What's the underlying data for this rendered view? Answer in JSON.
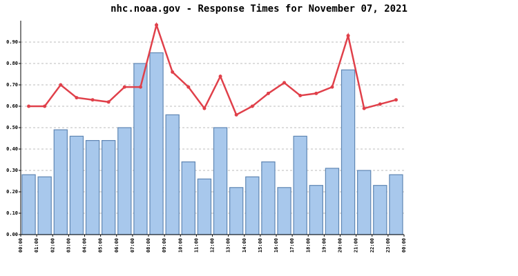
{
  "chart_data": {
    "type": "bar_line",
    "title": "nhc.noaa.gov - Response Times for November 07, 2021",
    "x_labels": [
      "00:00",
      "01:00",
      "02:00",
      "03:00",
      "04:00",
      "05:00",
      "06:00",
      "07:00",
      "08:00",
      "09:00",
      "10:00",
      "11:00",
      "12:00",
      "13:00",
      "14:00",
      "15:00",
      "16:00",
      "17:00",
      "18:00",
      "19:00",
      "20:00",
      "21:00",
      "22:00",
      "23:00",
      "00:00"
    ],
    "series": [
      {
        "kind": "bar",
        "color": "#a8c8ec",
        "values": [
          0.28,
          0.27,
          0.49,
          0.46,
          0.44,
          0.44,
          0.5,
          0.8,
          0.85,
          0.56,
          0.34,
          0.26,
          0.5,
          0.22,
          0.27,
          0.34,
          0.22,
          0.46,
          0.23,
          0.31,
          0.77,
          0.3,
          0.23,
          0.28
        ]
      },
      {
        "kind": "line",
        "color": "#e0404a",
        "values": [
          0.6,
          0.6,
          0.7,
          0.64,
          0.63,
          0.62,
          0.69,
          0.69,
          0.98,
          0.76,
          0.69,
          0.59,
          0.74,
          0.56,
          0.6,
          0.66,
          0.71,
          0.65,
          0.66,
          0.69,
          0.93,
          0.59,
          0.61,
          0.63
        ]
      }
    ],
    "ylim": [
      0,
      1.0
    ],
    "yticks": [
      {
        "value": 0,
        "label": "0.00"
      },
      {
        "value": 0.1,
        "label": "0.10"
      },
      {
        "value": 0.2,
        "label": "0.20"
      },
      {
        "value": 0.3,
        "label": "0.30"
      },
      {
        "value": 0.4,
        "label": "0.40"
      },
      {
        "value": 0.5,
        "label": "0.50"
      },
      {
        "value": 0.6,
        "label": "0.60"
      },
      {
        "value": 0.7,
        "label": "0.70"
      },
      {
        "value": 0.8,
        "label": "0.80"
      },
      {
        "value": 0.9,
        "label": "0.90"
      }
    ],
    "grid": true
  }
}
